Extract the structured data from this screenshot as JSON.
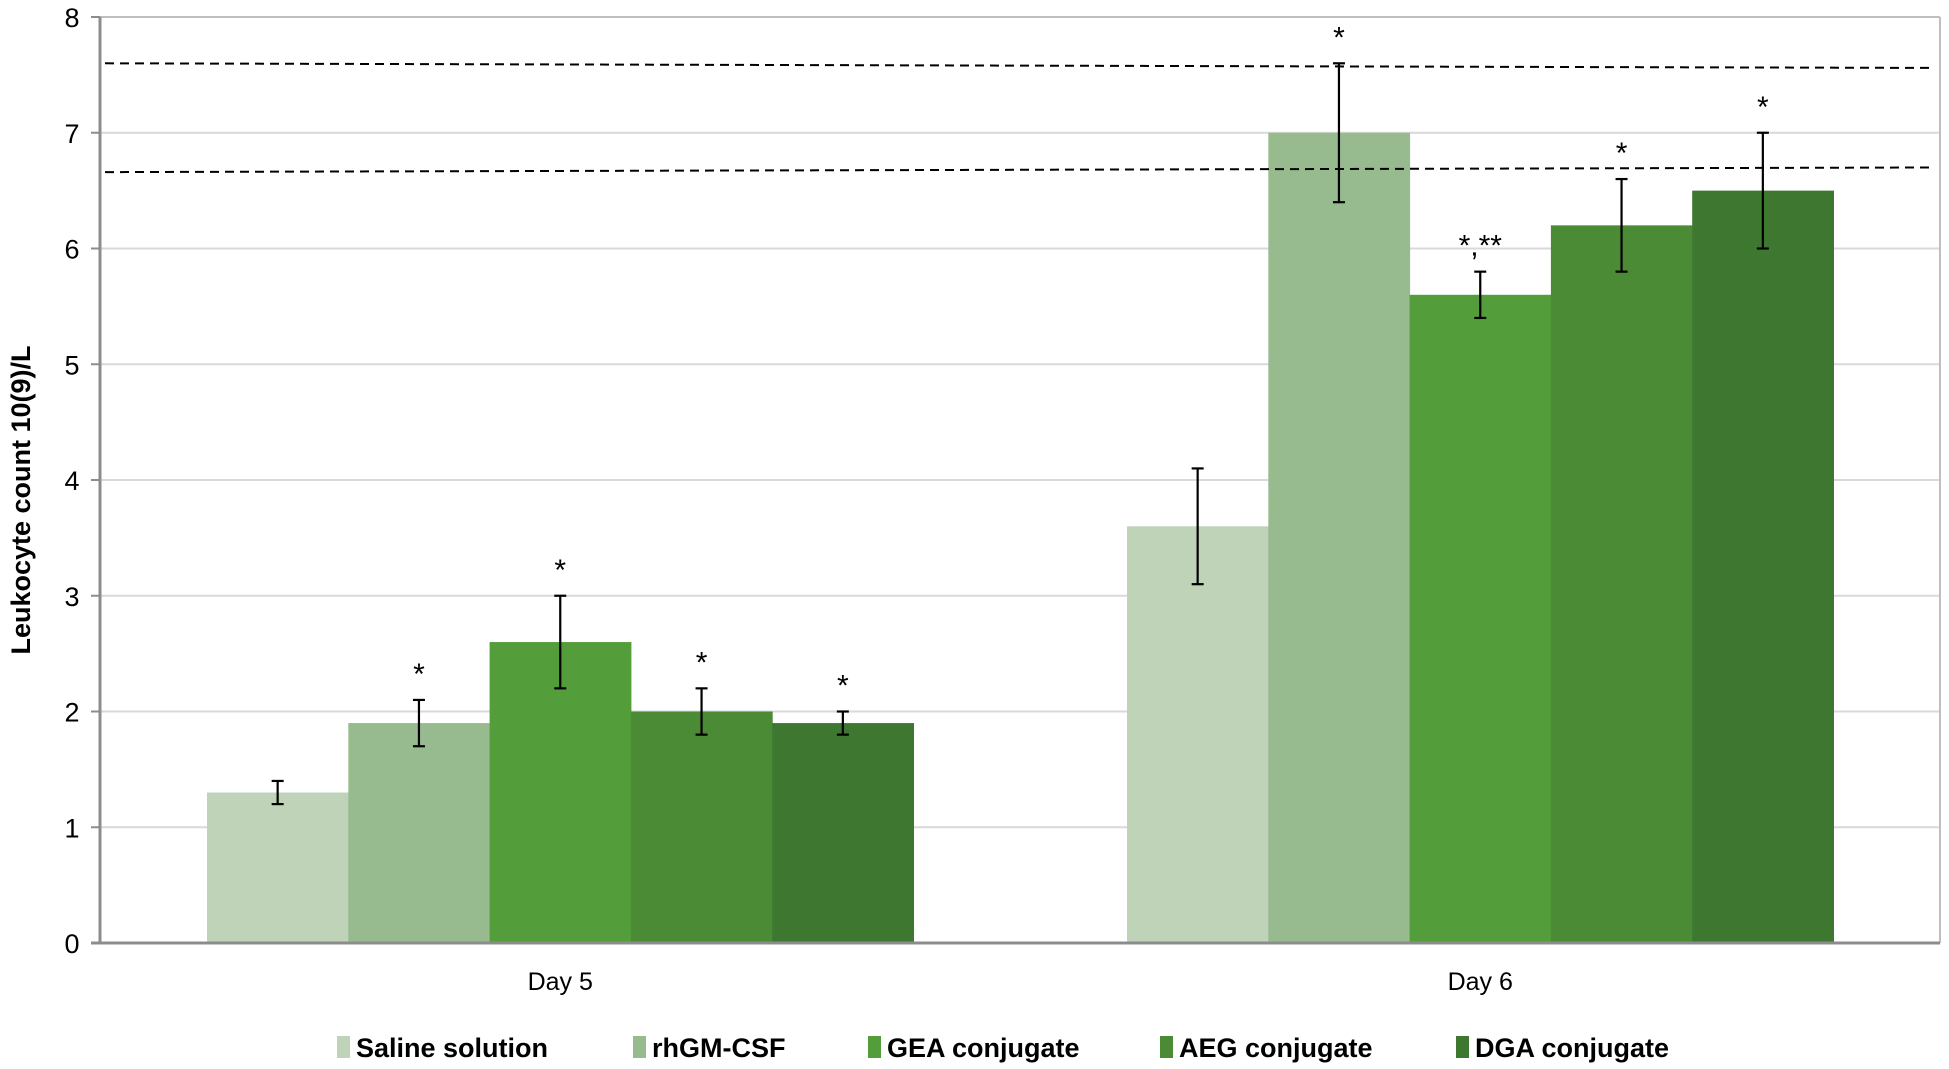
{
  "chart_data": {
    "type": "bar",
    "title": "",
    "xlabel": "",
    "ylabel": "Leukocyte count 10(9)/L",
    "ylim": [
      0,
      8
    ],
    "yticks": [
      0,
      1,
      2,
      3,
      4,
      5,
      6,
      7,
      8
    ],
    "grid": true,
    "legend_position": "bottom",
    "categories": [
      "Day 5",
      "Day 6"
    ],
    "series": [
      {
        "name": "Saline solution",
        "color": "#BFD3B8",
        "values": [
          1.3,
          3.6
        ],
        "errors": [
          0.1,
          0.5
        ],
        "annotations": [
          "",
          ""
        ]
      },
      {
        "name": "rhGM-CSF",
        "color": "#97BB8F",
        "values": [
          1.9,
          7.0
        ],
        "errors": [
          0.2,
          0.6
        ],
        "annotations": [
          "*",
          "*"
        ]
      },
      {
        "name": "GEA conjugate",
        "color": "#539D3A",
        "values": [
          2.6,
          5.6
        ],
        "errors": [
          0.4,
          0.2
        ],
        "annotations": [
          "*",
          "*,**"
        ]
      },
      {
        "name": "AEG conjugate",
        "color": "#4B8B35",
        "values": [
          2.0,
          6.2
        ],
        "errors": [
          0.2,
          0.4
        ],
        "annotations": [
          "*",
          "*"
        ]
      },
      {
        "name": "DGA conjugate",
        "color": "#3E7830",
        "values": [
          1.9,
          6.5
        ],
        "errors": [
          0.1,
          0.5
        ],
        "annotations": [
          "*",
          "*"
        ]
      }
    ],
    "reference_lines": [
      {
        "style": "dashed",
        "y_start": 7.6,
        "y_end": 7.56
      },
      {
        "style": "dashed",
        "y_start": 6.66,
        "y_end": 6.7
      }
    ]
  }
}
